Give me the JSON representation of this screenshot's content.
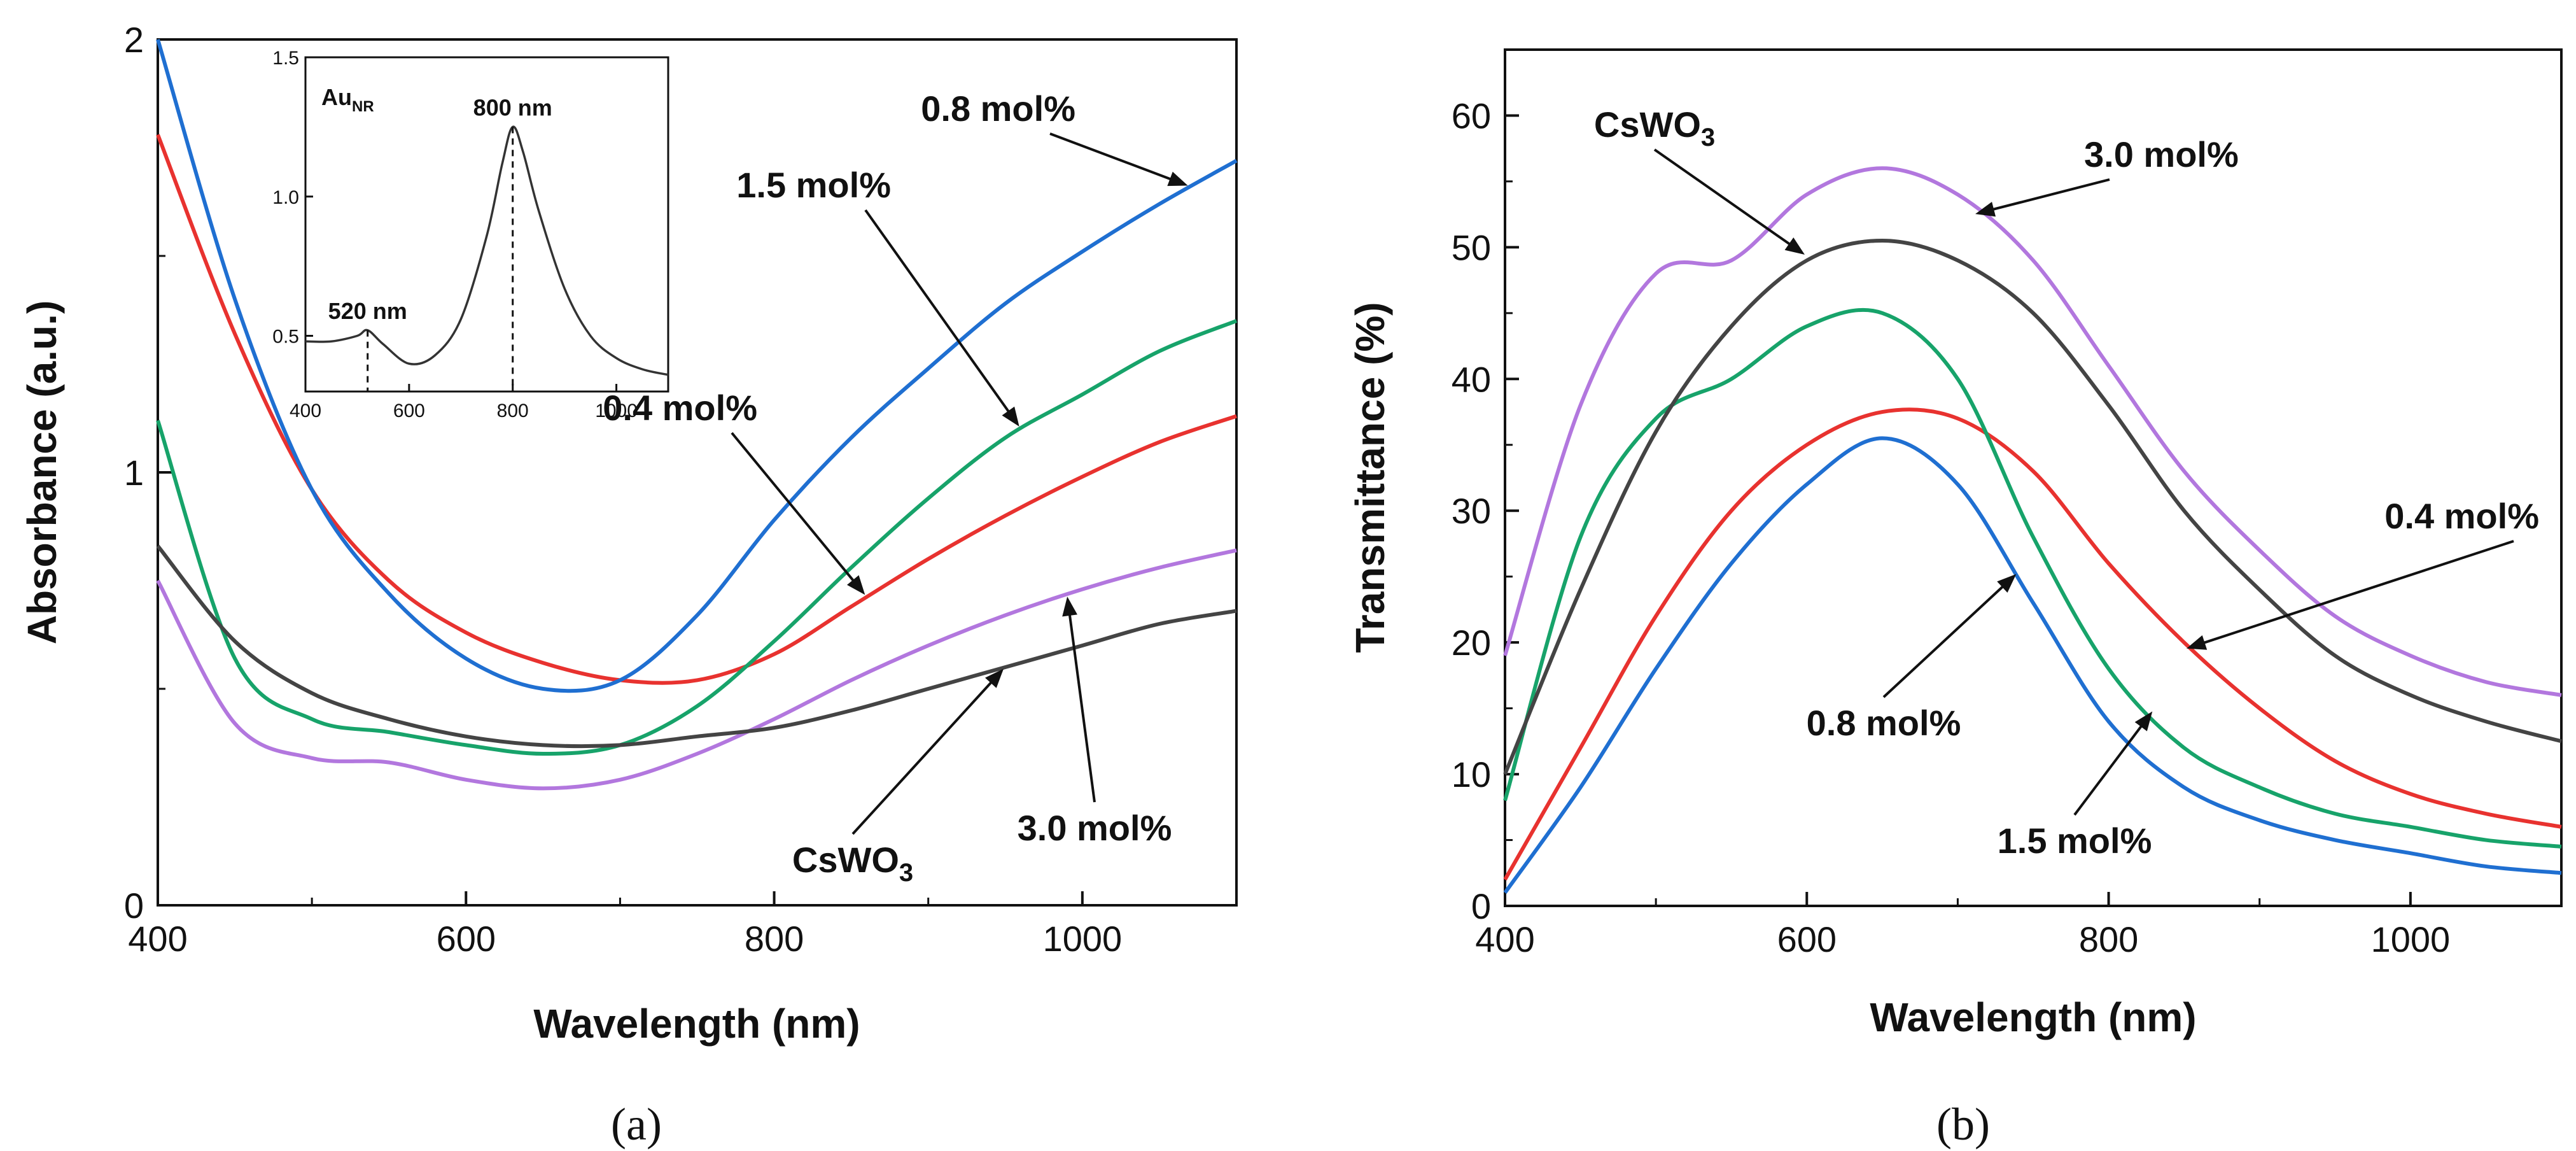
{
  "colors": {
    "series_0_4": "#e8322f",
    "series_0_8": "#1f6fd1",
    "series_1_5": "#17a36a",
    "series_3_0": "#b277de",
    "series_cswo3": "#444444",
    "inset_line": "#333333",
    "axis": "#111111"
  },
  "chart_data": [
    {
      "type": "line",
      "panel_label": "(a)",
      "xlabel": "Wavelength (nm)",
      "ylabel": "Absorbance (a.u.)",
      "xlim": [
        400,
        1100
      ],
      "ylim": [
        0,
        2
      ],
      "x_ticks": [
        "400",
        "600",
        "800",
        "1000"
      ],
      "y_ticks": [
        "0",
        "1",
        "2"
      ],
      "x": [
        400,
        450,
        500,
        550,
        600,
        650,
        700,
        750,
        800,
        850,
        900,
        950,
        1000,
        1050,
        1100
      ],
      "series": [
        {
          "name": "0.4 mol%",
          "color": "#e8322f",
          "values": [
            1.78,
            1.32,
            0.96,
            0.75,
            0.63,
            0.56,
            0.52,
            0.52,
            0.58,
            0.69,
            0.8,
            0.9,
            0.99,
            1.07,
            1.13
          ]
        },
        {
          "name": "0.8 mol%",
          "color": "#1f6fd1",
          "values": [
            2.0,
            1.4,
            0.96,
            0.72,
            0.57,
            0.5,
            0.52,
            0.67,
            0.89,
            1.08,
            1.24,
            1.39,
            1.51,
            1.62,
            1.72
          ]
        },
        {
          "name": "1.5 mol%",
          "color": "#17a36a",
          "values": [
            1.12,
            0.57,
            0.43,
            0.4,
            0.37,
            0.35,
            0.37,
            0.46,
            0.61,
            0.78,
            0.94,
            1.08,
            1.18,
            1.28,
            1.35
          ]
        },
        {
          "name": "3.0 mol%",
          "color": "#b277de",
          "values": [
            0.75,
            0.42,
            0.34,
            0.33,
            0.29,
            0.27,
            0.29,
            0.35,
            0.43,
            0.52,
            0.6,
            0.67,
            0.73,
            0.78,
            0.82
          ]
        },
        {
          "name": "CsWO3",
          "color": "#444444",
          "values": [
            0.83,
            0.61,
            0.49,
            0.43,
            0.39,
            0.37,
            0.37,
            0.39,
            0.41,
            0.45,
            0.5,
            0.55,
            0.6,
            0.65,
            0.68
          ]
        }
      ],
      "annotations": [
        {
          "text": "0.8 mol%",
          "target": "0.8 mol%",
          "at_x": 1070
        },
        {
          "text": "1.5 mol%",
          "target": "1.5 mol%",
          "at_x": 960
        },
        {
          "text": "0.4 mol%",
          "target": "0.4 mol%",
          "at_x": 860
        },
        {
          "text": "3.0 mol%",
          "target": "3.0 mol%",
          "at_x": 990
        },
        {
          "text": "CsWO",
          "subscript": "3",
          "target": "CsWO3",
          "at_x": 950
        }
      ],
      "inset": {
        "title": "Au",
        "title_subscript": "NR",
        "xlim": [
          400,
          1100
        ],
        "ylim": [
          0.3,
          1.5
        ],
        "x_ticks": [
          "400",
          "600",
          "800",
          "1000"
        ],
        "y_ticks": [
          "0.5",
          "1.0",
          "1.5"
        ],
        "x": [
          400,
          450,
          500,
          520,
          550,
          600,
          650,
          700,
          750,
          780,
          800,
          820,
          850,
          900,
          950,
          1000,
          1050,
          1100
        ],
        "values": [
          0.48,
          0.48,
          0.5,
          0.52,
          0.47,
          0.4,
          0.43,
          0.56,
          0.86,
          1.12,
          1.25,
          1.16,
          0.95,
          0.67,
          0.5,
          0.42,
          0.38,
          0.36
        ],
        "peaks": [
          {
            "x": 520,
            "label": "520 nm"
          },
          {
            "x": 800,
            "label": "800 nm"
          }
        ]
      }
    },
    {
      "type": "line",
      "panel_label": "(b)",
      "xlabel": "Wavelength (nm)",
      "ylabel": "Transmittance (%)",
      "xlim": [
        400,
        1100
      ],
      "ylim": [
        0,
        65
      ],
      "x_ticks": [
        "400",
        "600",
        "800",
        "1000"
      ],
      "y_ticks": [
        "0",
        "10",
        "20",
        "30",
        "40",
        "50",
        "60"
      ],
      "x": [
        400,
        450,
        500,
        550,
        600,
        650,
        700,
        750,
        800,
        850,
        900,
        950,
        1000,
        1050,
        1100
      ],
      "series": [
        {
          "name": "0.4 mol%",
          "color": "#e8322f",
          "values": [
            2,
            12,
            22,
            30,
            35,
            37.5,
            37,
            33,
            26,
            20,
            15,
            11,
            8.5,
            7,
            6
          ]
        },
        {
          "name": "0.8 mol%",
          "color": "#1f6fd1",
          "values": [
            1,
            9,
            18,
            26,
            32,
            35.5,
            32,
            23,
            14,
            9,
            6.5,
            5,
            4,
            3,
            2.5
          ]
        },
        {
          "name": "1.5 mol%",
          "color": "#17a36a",
          "values": [
            8,
            28,
            37,
            40,
            44,
            45,
            40,
            28,
            18,
            12,
            9,
            7,
            6,
            5,
            4.5
          ]
        },
        {
          "name": "3.0 mol%",
          "color": "#b277de",
          "values": [
            19,
            38,
            48,
            49,
            54,
            56,
            54,
            49,
            41,
            33,
            27,
            22,
            19,
            17,
            16
          ]
        },
        {
          "name": "CsWO3",
          "color": "#444444",
          "values": [
            10,
            24,
            36,
            44,
            49,
            50.5,
            49,
            45,
            38,
            30,
            24,
            19,
            16,
            14,
            12.5
          ]
        }
      ],
      "annotations": [
        {
          "text": "CsWO",
          "subscript": "3",
          "target": "CsWO3",
          "at_x": 600
        },
        {
          "text": "3.0 mol%",
          "target": "3.0 mol%",
          "at_x": 710
        },
        {
          "text": "0.4 mol%",
          "target": "0.4 mol%",
          "at_x": 850
        },
        {
          "text": "0.8 mol%",
          "target": "0.8 mol%",
          "at_x": 740
        },
        {
          "text": "1.5 mol%",
          "target": "1.5 mol%",
          "at_x": 830
        }
      ]
    }
  ]
}
